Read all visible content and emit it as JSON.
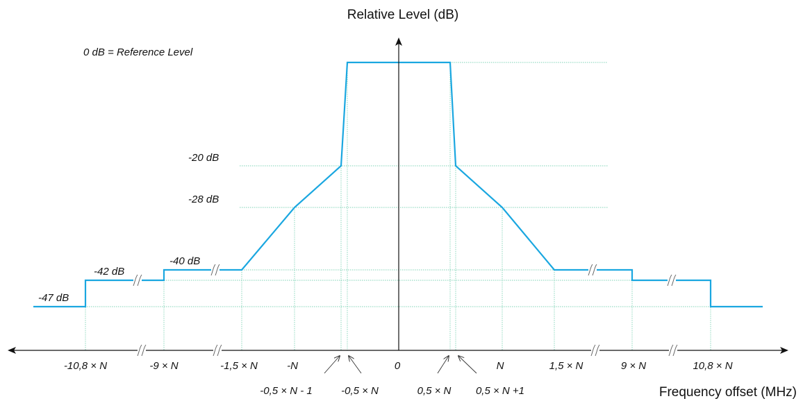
{
  "diagram": {
    "y_axis_title": "Relative Level (dB)",
    "x_axis_title": "Frequency offset (MHz)",
    "reference_label": "0 dB = Reference Level",
    "level_labels": [
      "-20 dB",
      "-28 dB",
      "-40 dB",
      "-42 dB",
      "-47 dB"
    ],
    "x_tick_labels": [
      "-10,8 × N",
      "-9 × N",
      "-1,5 × N",
      "-N",
      "0",
      "N",
      "1,5 × N",
      "9 × N",
      "10,8 × N"
    ],
    "pointer_labels": [
      "-0,5 × N - 1",
      "-0,5 × N",
      "0,5 × N",
      "0,5 × N +1"
    ],
    "colors": {
      "mask": "#1aa7e0",
      "grid": "#7fd3b6",
      "axis": "#111111"
    }
  }
}
